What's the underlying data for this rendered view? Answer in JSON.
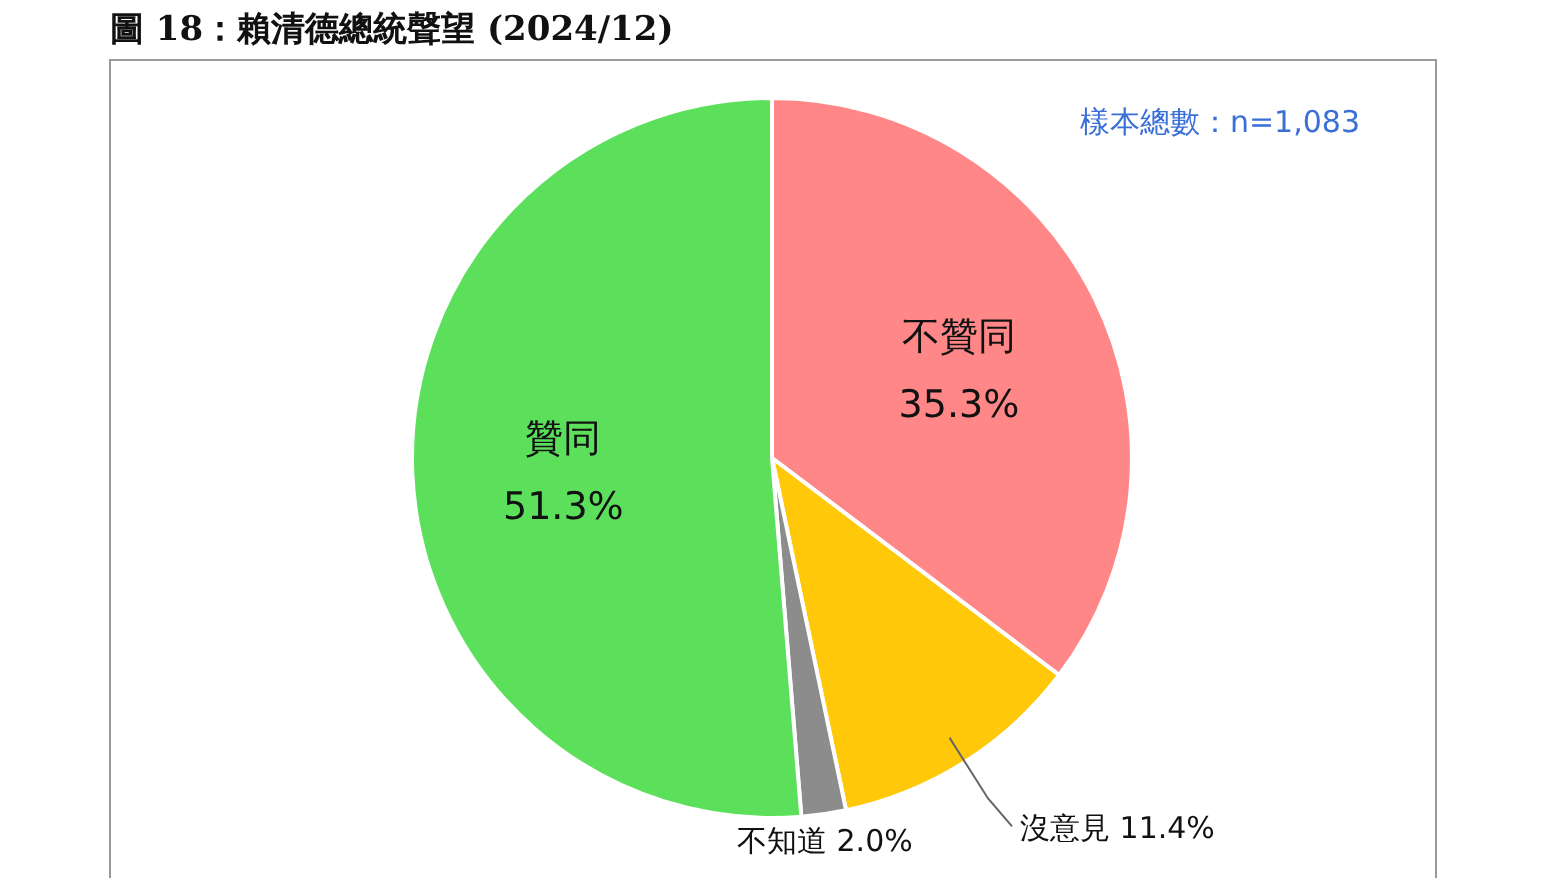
{
  "chart_data": {
    "type": "pie",
    "title": "圖 18：賴清德總統聲望 (2024/12)",
    "annotations": [
      "樣本總數：n=1,083"
    ],
    "categories": [
      "不贊同",
      "沒意見",
      "不知道",
      "贊同"
    ],
    "values": [
      35.3,
      11.4,
      2.0,
      51.3
    ],
    "colors": [
      "#ff8787",
      "#ffc808",
      "#8c8c8c",
      "#5ce05c"
    ],
    "value_labels": [
      "35.3%",
      "11.4%",
      "2.0%",
      "51.3%"
    ]
  }
}
